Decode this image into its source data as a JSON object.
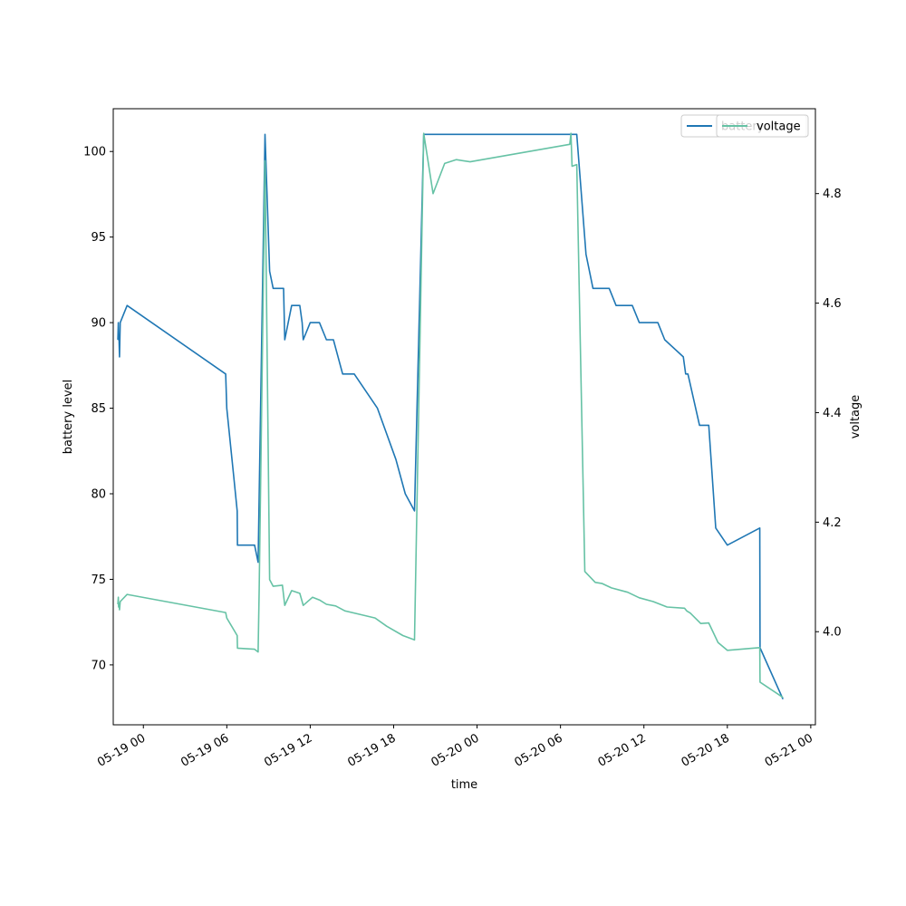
{
  "chart_data": {
    "type": "line",
    "title": "",
    "xlabel": "time",
    "ylabel_left": "battery level",
    "ylabel_right": "voltage",
    "x_range": [
      "05-18 21:50",
      "05-21 00:20"
    ],
    "y_left_range": [
      66.5,
      102.5
    ],
    "y_right_range": [
      3.83,
      4.955
    ],
    "x_ticks": [
      "05-19 00",
      "05-19 06",
      "05-19 12",
      "05-19 18",
      "05-20 00",
      "05-20 06",
      "05-20 12",
      "05-20 18",
      "05-21 00"
    ],
    "y_left_ticks": [
      70,
      75,
      80,
      85,
      90,
      95,
      100
    ],
    "y_right_ticks": [
      "4.0",
      "4.2",
      "4.4",
      "4.6",
      "4.8"
    ],
    "legend_position": "top-right",
    "grid": false,
    "series": [
      {
        "name": "battery",
        "axis": "left",
        "color": "#1f77b4",
        "points": [
          [
            "05-18 22:10",
            89
          ],
          [
            "05-18 22:12",
            90
          ],
          [
            "05-18 22:13",
            89
          ],
          [
            "05-18 22:15",
            89
          ],
          [
            "05-18 22:17",
            88
          ],
          [
            "05-18 22:20",
            90
          ],
          [
            "05-18 22:50",
            91
          ],
          [
            "05-19 05:55",
            87
          ],
          [
            "05-19 06:00",
            85
          ],
          [
            "05-19 06:30",
            81
          ],
          [
            "05-19 06:45",
            79
          ],
          [
            "05-19 06:46",
            77
          ],
          [
            "05-19 08:00",
            77
          ],
          [
            "05-19 08:15",
            76
          ],
          [
            "05-19 08:20",
            80
          ],
          [
            "05-19 08:45",
            101
          ],
          [
            "05-19 09:05",
            93
          ],
          [
            "05-19 09:20",
            92
          ],
          [
            "05-19 10:05",
            92
          ],
          [
            "05-19 10:10",
            89
          ],
          [
            "05-19 10:40",
            91
          ],
          [
            "05-19 11:15",
            91
          ],
          [
            "05-19 11:25",
            90
          ],
          [
            "05-19 11:30",
            89
          ],
          [
            "05-19 12:00",
            90
          ],
          [
            "05-19 12:40",
            90
          ],
          [
            "05-19 13:10",
            89
          ],
          [
            "05-19 13:40",
            89
          ],
          [
            "05-19 14:20",
            87
          ],
          [
            "05-19 15:10",
            87
          ],
          [
            "05-19 16:50",
            85
          ],
          [
            "05-19 18:10",
            82
          ],
          [
            "05-19 18:50",
            80
          ],
          [
            "05-19 19:30",
            79
          ],
          [
            "05-19 20:10",
            101
          ],
          [
            "05-20 07:10",
            101
          ],
          [
            "05-20 07:50",
            94
          ],
          [
            "05-20 08:20",
            92
          ],
          [
            "05-20 09:30",
            92
          ],
          [
            "05-20 10:00",
            91
          ],
          [
            "05-20 11:10",
            91
          ],
          [
            "05-20 11:40",
            90
          ],
          [
            "05-20 13:00",
            90
          ],
          [
            "05-20 13:30",
            89
          ],
          [
            "05-20 14:50",
            88
          ],
          [
            "05-20 15:00",
            87
          ],
          [
            "05-20 15:10",
            87
          ],
          [
            "05-20 16:00",
            84
          ],
          [
            "05-20 16:40",
            84
          ],
          [
            "05-20 17:10",
            78
          ],
          [
            "05-20 18:00",
            77
          ],
          [
            "05-20 20:20",
            78
          ],
          [
            "05-20 20:21",
            71
          ],
          [
            "05-20 22:00",
            68
          ]
        ]
      },
      {
        "name": "voltage",
        "axis": "right",
        "color": "#66c2a5",
        "points": [
          [
            "05-18 22:10",
            4.05
          ],
          [
            "05-18 22:12",
            4.063
          ],
          [
            "05-18 22:13",
            4.045
          ],
          [
            "05-18 22:15",
            4.052
          ],
          [
            "05-18 22:17",
            4.04
          ],
          [
            "05-18 22:20",
            4.055
          ],
          [
            "05-18 22:50",
            4.068
          ],
          [
            "05-19 05:55",
            4.035
          ],
          [
            "05-19 06:00",
            4.025
          ],
          [
            "05-19 06:45",
            3.993
          ],
          [
            "05-19 06:46",
            3.97
          ],
          [
            "05-19 08:00",
            3.968
          ],
          [
            "05-19 08:15",
            3.963
          ],
          [
            "05-19 08:20",
            4.08
          ],
          [
            "05-19 08:45",
            4.86
          ],
          [
            "05-19 09:05",
            4.095
          ],
          [
            "05-19 09:20",
            4.083
          ],
          [
            "05-19 10:00",
            4.085
          ],
          [
            "05-19 10:10",
            4.048
          ],
          [
            "05-19 10:40",
            4.075
          ],
          [
            "05-19 11:15",
            4.07
          ],
          [
            "05-19 11:30",
            4.048
          ],
          [
            "05-19 12:10",
            4.063
          ],
          [
            "05-19 12:40",
            4.058
          ],
          [
            "05-19 13:10",
            4.05
          ],
          [
            "05-19 13:50",
            4.047
          ],
          [
            "05-19 14:30",
            4.038
          ],
          [
            "05-19 15:30",
            4.032
          ],
          [
            "05-19 16:40",
            4.025
          ],
          [
            "05-19 17:30",
            4.01
          ],
          [
            "05-19 18:40",
            3.993
          ],
          [
            "05-19 19:30",
            3.985
          ],
          [
            "05-19 20:10",
            4.91
          ],
          [
            "05-19 20:50",
            4.8
          ],
          [
            "05-19 21:40",
            4.855
          ],
          [
            "05-19 22:30",
            4.862
          ],
          [
            "05-19 23:30",
            4.858
          ],
          [
            "05-20 06:40",
            4.89
          ],
          [
            "05-20 06:45",
            4.91
          ],
          [
            "05-20 06:50",
            4.85
          ],
          [
            "05-20 07:10",
            4.853
          ],
          [
            "05-20 07:45",
            4.11
          ],
          [
            "05-20 08:30",
            4.09
          ],
          [
            "05-20 09:00",
            4.088
          ],
          [
            "05-20 09:40",
            4.08
          ],
          [
            "05-20 10:50",
            4.072
          ],
          [
            "05-20 11:40",
            4.062
          ],
          [
            "05-20 12:40",
            4.055
          ],
          [
            "05-20 13:40",
            4.045
          ],
          [
            "05-20 14:55",
            4.043
          ],
          [
            "05-20 15:05",
            4.038
          ],
          [
            "05-20 15:20",
            4.034
          ],
          [
            "05-20 16:05",
            4.015
          ],
          [
            "05-20 16:40",
            4.016
          ],
          [
            "05-20 17:20",
            3.98
          ],
          [
            "05-20 18:00",
            3.966
          ],
          [
            "05-20 20:20",
            3.971
          ],
          [
            "05-20 20:21",
            3.908
          ],
          [
            "05-20 22:00",
            3.88
          ]
        ]
      }
    ],
    "legends": [
      {
        "entries": [
          {
            "label": "battery",
            "color": "#1f77b4"
          }
        ]
      },
      {
        "entries": [
          {
            "label": "voltage",
            "color": "#66c2a5"
          }
        ]
      }
    ]
  }
}
